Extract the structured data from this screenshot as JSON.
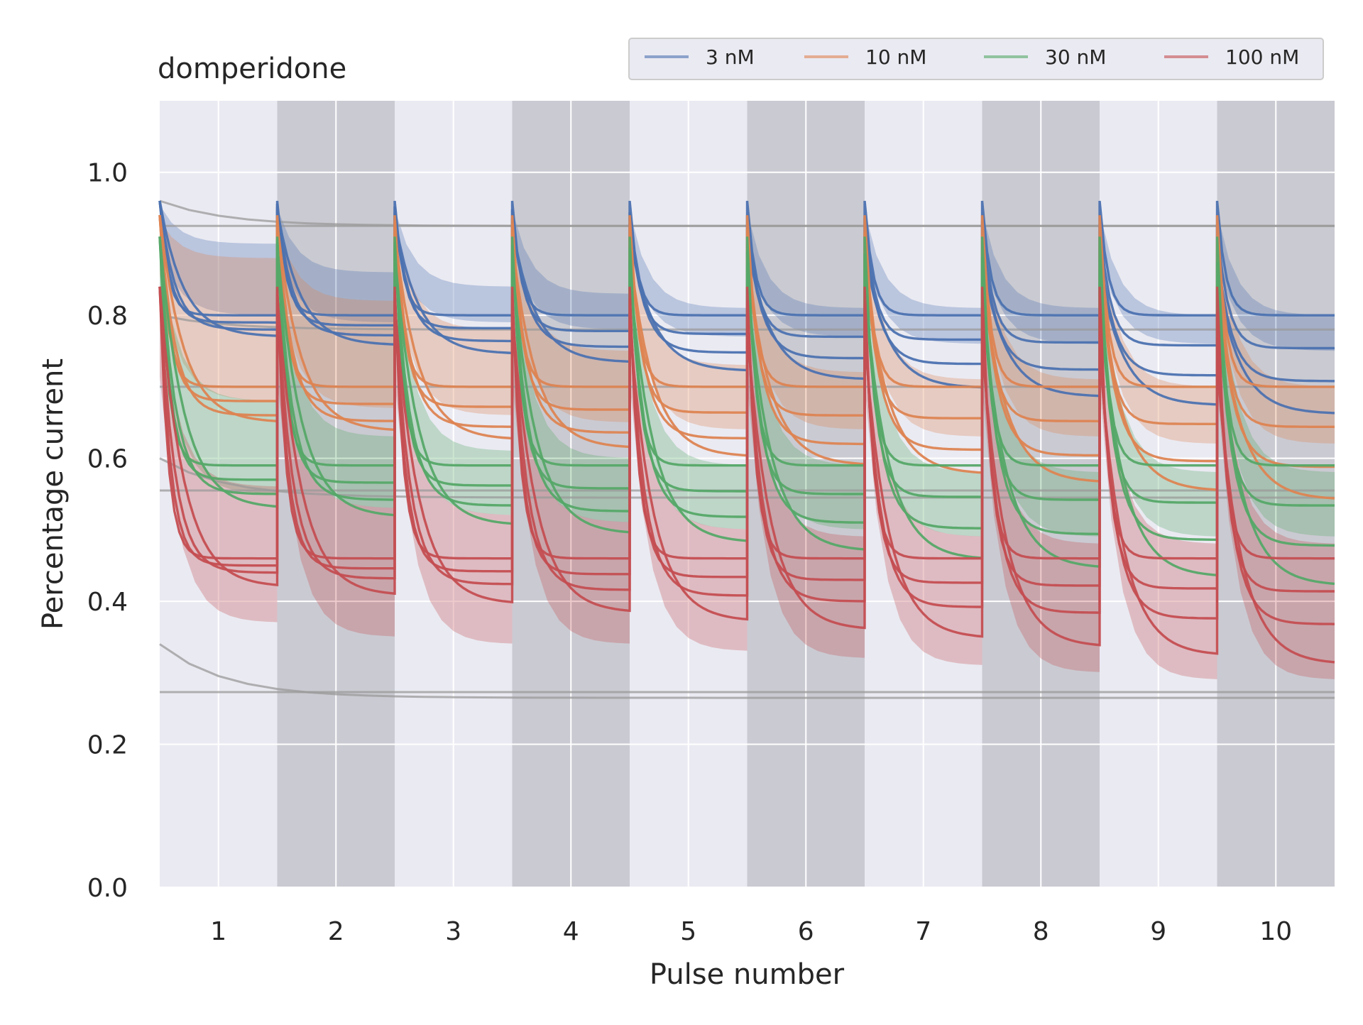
{
  "chart_data": {
    "type": "line",
    "title": "domperidone",
    "xlabel": "Pulse number",
    "ylabel": "Percentage current",
    "xlim": [
      0.5,
      10.5
    ],
    "ylim": [
      0.0,
      1.1
    ],
    "xticks": [
      "1",
      "2",
      "3",
      "4",
      "5",
      "6",
      "7",
      "8",
      "9",
      "10"
    ],
    "yticks": [
      "0.0",
      "0.2",
      "0.4",
      "0.6",
      "0.8",
      "1.0"
    ],
    "grid": true,
    "legend_position": "top-right, above plot",
    "shaded_pulses": [
      2,
      4,
      6,
      8,
      10
    ],
    "series": [
      {
        "name": "3 nM",
        "color": "#4c72b0",
        "pulse_peak": 0.96,
        "steady_state": 0.8,
        "band_low": [
          0.8,
          0.79,
          0.79,
          0.78,
          0.77,
          0.77,
          0.76,
          0.76,
          0.76,
          0.75
        ],
        "band_high": [
          0.9,
          0.86,
          0.84,
          0.83,
          0.81,
          0.81,
          0.81,
          0.81,
          0.8,
          0.8
        ],
        "fit_levels": [
          0.8,
          0.79,
          0.78,
          0.77
        ]
      },
      {
        "name": "10 nM",
        "color": "#dd8452",
        "pulse_peak": 0.94,
        "steady_state": 0.7,
        "band_low": [
          0.68,
          0.67,
          0.66,
          0.65,
          0.64,
          0.64,
          0.63,
          0.63,
          0.62,
          0.62
        ],
        "band_high": [
          0.88,
          0.82,
          0.78,
          0.75,
          0.73,
          0.72,
          0.71,
          0.71,
          0.7,
          0.7
        ],
        "fit_levels": [
          0.7,
          0.68,
          0.66,
          0.65
        ]
      },
      {
        "name": "30 nM",
        "color": "#55a868",
        "pulse_peak": 0.91,
        "steady_state": 0.59,
        "band_low": [
          0.55,
          0.53,
          0.52,
          0.51,
          0.5,
          0.5,
          0.49,
          0.49,
          0.49,
          0.49
        ],
        "band_high": [
          0.68,
          0.63,
          0.61,
          0.6,
          0.59,
          0.59,
          0.58,
          0.58,
          0.58,
          0.58
        ],
        "fit_levels": [
          0.59,
          0.57,
          0.55,
          0.53
        ]
      },
      {
        "name": "100 nM",
        "color": "#c44e52",
        "pulse_peak": 0.84,
        "steady_state": 0.46,
        "band_low": [
          0.37,
          0.35,
          0.34,
          0.34,
          0.33,
          0.32,
          0.31,
          0.3,
          0.29,
          0.29
        ],
        "band_high": [
          0.56,
          0.53,
          0.52,
          0.51,
          0.5,
          0.49,
          0.49,
          0.48,
          0.48,
          0.48
        ],
        "fit_levels": [
          0.46,
          0.45,
          0.44,
          0.42
        ]
      }
    ],
    "reference_lines_gray": [
      {
        "start": 0.96,
        "end": 0.925
      },
      {
        "start": 0.925,
        "end": 0.925
      },
      {
        "start": 0.8,
        "end": 0.78
      },
      {
        "start": 0.7,
        "end": 0.7
      },
      {
        "start": 0.555,
        "end": 0.555
      },
      {
        "start": 0.6,
        "end": 0.545
      },
      {
        "start": 0.34,
        "end": 0.265
      },
      {
        "start": 0.273,
        "end": 0.273
      }
    ]
  }
}
